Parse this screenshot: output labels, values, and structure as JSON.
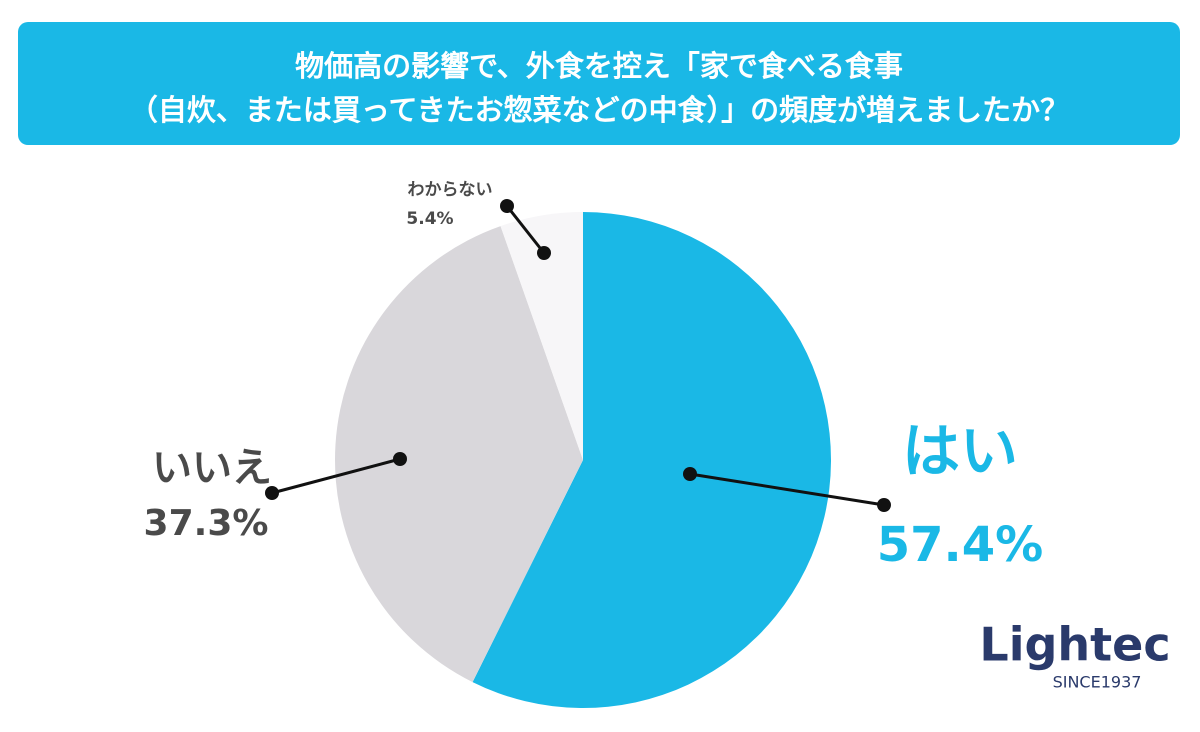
{
  "chart_data": {
    "type": "pie",
    "title": [
      "物価高の影響で、外食を控え「家で食べる食事",
      "（自炊、または買ってきたお惣菜などの中食）」の頻度が増えましたか？"
    ],
    "categories": [
      "はい",
      "いいえ",
      "わからない"
    ],
    "values": [
      57.4,
      37.3,
      5.4
    ],
    "value_labels": [
      "57.4%",
      "37.3%",
      "5.4%"
    ],
    "colors": [
      "#1ab8e6",
      "#d9d7db",
      "#f7f6f8"
    ],
    "label_colors": [
      "#1ab8e6",
      "#4a4a4a",
      "#4a4a4a"
    ]
  },
  "logo": {
    "name": "Lightec",
    "since": "SINCE1937"
  }
}
